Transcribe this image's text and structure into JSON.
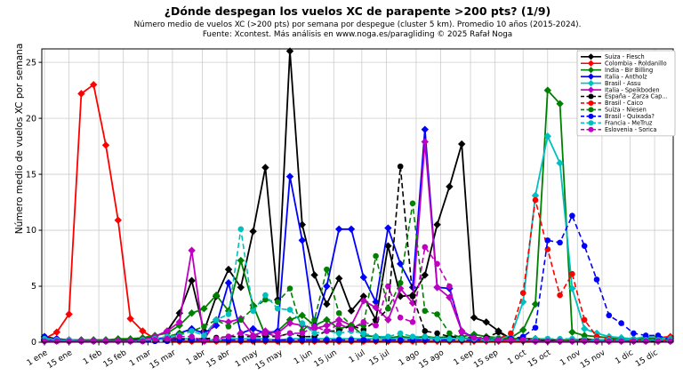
{
  "title": "¿Dónde despegan los vuelos XC de parapente >200 pts? (1/9)",
  "subtitle1": "Número medio de vuelos XC (>200 pts) por semana por despegue (cluster 5 km). Promedio 10 años (2015-2024).",
  "subtitle2": "Fuente: Xcontest. Más análisis en www.noga.es/paragliding © 2025 Rafał Noga",
  "chart_data": {
    "type": "line",
    "title": "¿Dónde despegan los vuelos XC de parapente >200 pts? (1/9)",
    "xlabel": "",
    "ylabel": "Número medio de vuelos XC por semana",
    "x_unit": "week_of_year",
    "x_range": [
      1,
      52
    ],
    "ylim": [
      0,
      26.2
    ],
    "yticks": [
      0,
      5,
      10,
      15,
      20,
      25
    ],
    "grid": true,
    "legend_position": "upper right",
    "xticks": [
      {
        "label": "1 ene",
        "day": 1
      },
      {
        "label": "15 ene",
        "day": 15
      },
      {
        "label": "1 feb",
        "day": 32
      },
      {
        "label": "15 feb",
        "day": 46
      },
      {
        "label": "1 mar",
        "day": 60
      },
      {
        "label": "15 mar",
        "day": 74
      },
      {
        "label": "1 abr",
        "day": 91
      },
      {
        "label": "15 abr",
        "day": 105
      },
      {
        "label": "1 may",
        "day": 121
      },
      {
        "label": "15 may",
        "day": 135
      },
      {
        "label": "1 jun",
        "day": 152
      },
      {
        "label": "15 jun",
        "day": 166
      },
      {
        "label": "1 jul",
        "day": 182
      },
      {
        "label": "15 jul",
        "day": 196
      },
      {
        "label": "1 ago",
        "day": 213
      },
      {
        "label": "15 ago",
        "day": 227
      },
      {
        "label": "1 sep",
        "day": 244
      },
      {
        "label": "15 sep",
        "day": 258
      },
      {
        "label": "1 oct",
        "day": 274
      },
      {
        "label": "15 oct",
        "day": 288
      },
      {
        "label": "1 nov",
        "day": 305
      },
      {
        "label": "15 nov",
        "day": 319
      },
      {
        "label": "1 dic",
        "day": 335
      },
      {
        "label": "15 dic",
        "day": 349
      }
    ],
    "series": [
      {
        "id": "suiza-fiesch",
        "name": "Suiza - Fiesch",
        "color": "#000000",
        "dash": false,
        "marker": "diamond",
        "values": [
          0.5,
          0.3,
          0.2,
          0.2,
          0.2,
          0.2,
          0.2,
          0.2,
          0.3,
          0.5,
          1.0,
          2.6,
          5.5,
          1.0,
          4.1,
          6.5,
          4.9,
          9.9,
          15.6,
          3.8,
          26.0,
          10.5,
          6.0,
          3.4,
          5.7,
          2.8,
          4.1,
          2.0,
          8.6,
          4.1,
          4.2,
          6.0,
          10.5,
          13.9,
          17.7,
          2.2,
          1.8,
          1.0,
          0.3,
          0.3,
          0.3,
          0.2,
          0.2,
          0.2,
          0.3,
          0.2,
          0.2,
          0.2,
          0.2,
          0.3,
          0.3,
          0.4
        ]
      },
      {
        "id": "colombia-roldanillo",
        "name": "Colombia - Roldanillo",
        "color": "#ff0000",
        "dash": false,
        "marker": "diamond",
        "values": [
          0.3,
          0.9,
          2.5,
          22.2,
          23.0,
          17.6,
          10.9,
          2.1,
          1.0,
          0.3,
          0.2,
          0.1,
          0.1,
          0.1,
          0.1,
          0.1,
          0.1,
          0.1,
          0.1,
          0.1,
          0.1,
          0.1,
          0.1,
          0.1,
          0.1,
          0.1,
          0.1,
          0.1,
          0.1,
          0.1,
          0.1,
          0.1,
          0.1,
          0.1,
          0.1,
          0.1,
          0.1,
          0.1,
          0.1,
          0.1,
          0.1,
          0.1,
          0.1,
          0.2,
          0.2,
          0.2,
          0.2,
          0.3,
          0.3,
          0.4,
          0.4,
          0.5
        ]
      },
      {
        "id": "india-bir-billing",
        "name": "India - Bir Billing",
        "color": "#008000",
        "dash": false,
        "marker": "diamond",
        "values": [
          0.2,
          0.2,
          0.2,
          0.2,
          0.2,
          0.2,
          0.3,
          0.3,
          0.4,
          0.6,
          0.8,
          1.5,
          2.6,
          3.0,
          4.2,
          2.8,
          7.3,
          3.3,
          0.6,
          1.0,
          2.0,
          2.4,
          1.5,
          2.0,
          1.2,
          1.5,
          0.6,
          0.5,
          0.4,
          0.5,
          0.4,
          0.5,
          0.4,
          0.5,
          0.5,
          0.7,
          0.5,
          0.4,
          0.4,
          1.1,
          3.4,
          22.5,
          21.3,
          0.9,
          0.6,
          0.5,
          0.4,
          0.3,
          0.3,
          0.3,
          0.5,
          0.3
        ]
      },
      {
        "id": "italia-antholz",
        "name": "Italia - Antholz",
        "color": "#0000ff",
        "dash": false,
        "marker": "diamond",
        "values": [
          0.2,
          0.2,
          0.1,
          0.1,
          0.1,
          0.1,
          0.1,
          0.1,
          0.2,
          0.3,
          0.4,
          0.8,
          1.2,
          0.8,
          1.5,
          5.3,
          0.8,
          1.2,
          0.8,
          1.0,
          14.8,
          9.1,
          1.3,
          5.0,
          10.1,
          10.1,
          5.8,
          3.6,
          10.2,
          7.0,
          4.9,
          19.0,
          4.9,
          4.8,
          1.0,
          0.4,
          0.3,
          0.2,
          0.2,
          0.2,
          0.1,
          0.1,
          0.1,
          0.1,
          0.1,
          0.1,
          0.1,
          0.1,
          0.1,
          0.1,
          0.1,
          0.1
        ]
      },
      {
        "id": "brasil-assu",
        "name": "Brasil - Assu",
        "color": "#00bfbf",
        "dash": false,
        "marker": "diamond",
        "values": [
          0.4,
          0.2,
          0.2,
          0.1,
          0.1,
          0.1,
          0.1,
          0.1,
          0.1,
          0.2,
          0.3,
          0.3,
          0.3,
          0.2,
          0.2,
          0.3,
          0.3,
          0.3,
          0.3,
          0.2,
          0.3,
          0.3,
          0.3,
          0.3,
          0.3,
          0.3,
          0.3,
          0.3,
          0.3,
          0.3,
          0.3,
          0.3,
          0.3,
          0.3,
          0.3,
          0.3,
          0.3,
          0.4,
          0.5,
          3.6,
          13.1,
          18.4,
          16.0,
          4.8,
          1.2,
          0.8,
          0.5,
          0.4,
          0.3,
          0.5,
          0.4,
          0.3
        ]
      },
      {
        "id": "italia-speikboden",
        "name": "Italia - Speikboden",
        "color": "#bf00bf",
        "dash": false,
        "marker": "diamond",
        "values": [
          0.1,
          0.1,
          0.1,
          0.1,
          0.1,
          0.1,
          0.1,
          0.1,
          0.2,
          0.5,
          1.0,
          1.8,
          8.2,
          0.2,
          2.0,
          1.8,
          2.1,
          0.6,
          1.0,
          0.8,
          1.7,
          1.5,
          1.2,
          1.5,
          2.0,
          1.5,
          3.7,
          3.1,
          2.0,
          4.8,
          3.5,
          17.9,
          4.9,
          4.0,
          1.0,
          0.3,
          0.2,
          0.2,
          0.2,
          0.2,
          0.1,
          0.1,
          0.1,
          0.1,
          0.1,
          0.1,
          0.1,
          0.1,
          0.1,
          0.1,
          0.1,
          0.1
        ]
      },
      {
        "id": "espana-zarza",
        "name": "España - Zarza Cap...",
        "color": "#000000",
        "dash": true,
        "marker": "circle",
        "values": [
          0.2,
          0.1,
          0.1,
          0.1,
          0.1,
          0.1,
          0.1,
          0.1,
          0.2,
          0.2,
          0.3,
          0.3,
          0.3,
          0.3,
          0.4,
          0.5,
          0.5,
          0.5,
          0.5,
          0.5,
          0.8,
          0.5,
          0.5,
          1.0,
          1.0,
          1.5,
          1.1,
          1.9,
          3.0,
          15.7,
          4.1,
          1.0,
          0.8,
          0.5,
          0.4,
          0.4,
          0.4,
          0.9,
          0.3,
          0.3,
          0.2,
          0.2,
          0.2,
          0.2,
          0.2,
          0.2,
          0.2,
          0.2,
          0.1,
          0.1,
          0.1,
          0.1
        ]
      },
      {
        "id": "brasil-caico",
        "name": "Brasil - Caico",
        "color": "#ff0000",
        "dash": true,
        "marker": "circle",
        "values": [
          0.2,
          0.1,
          0.1,
          0.1,
          0.1,
          0.1,
          0.1,
          0.1,
          0.1,
          0.1,
          0.1,
          0.1,
          0.1,
          0.1,
          0.1,
          0.1,
          0.1,
          0.1,
          0.1,
          0.1,
          0.1,
          0.1,
          0.1,
          0.1,
          0.1,
          0.1,
          0.1,
          0.1,
          0.1,
          0.1,
          0.1,
          0.2,
          0.2,
          0.2,
          0.2,
          0.2,
          0.2,
          0.3,
          0.8,
          4.4,
          12.7,
          8.3,
          4.2,
          6.1,
          2.0,
          0.5,
          0.3,
          0.2,
          0.2,
          0.2,
          0.2,
          0.2
        ]
      },
      {
        "id": "suiza-niesen",
        "name": "Suiza - Niesen",
        "color": "#008000",
        "dash": true,
        "marker": "circle",
        "values": [
          0.2,
          0.1,
          0.1,
          0.1,
          0.1,
          0.1,
          0.1,
          0.1,
          0.2,
          0.3,
          0.5,
          0.8,
          1.0,
          1.4,
          2.0,
          1.4,
          2.0,
          3.0,
          3.8,
          3.6,
          4.8,
          1.0,
          2.0,
          6.5,
          2.6,
          1.5,
          1.5,
          7.7,
          3.0,
          5.3,
          12.4,
          2.8,
          2.5,
          0.8,
          0.4,
          0.3,
          0.3,
          0.3,
          0.3,
          0.3,
          0.3,
          0.3,
          0.2,
          0.2,
          0.2,
          0.2,
          0.2,
          0.2,
          0.2,
          0.2,
          0.3,
          0.2
        ]
      },
      {
        "id": "brasil-quixada",
        "name": "Brasil - Quixada?",
        "color": "#0000ff",
        "dash": true,
        "marker": "circle",
        "values": [
          0.5,
          0.3,
          0.2,
          0.1,
          0.1,
          0.1,
          0.1,
          0.1,
          0.1,
          0.1,
          0.1,
          0.2,
          0.2,
          0.2,
          0.2,
          0.2,
          0.2,
          0.2,
          0.2,
          0.2,
          0.2,
          0.2,
          0.2,
          0.2,
          0.2,
          0.2,
          0.2,
          0.2,
          0.2,
          0.2,
          0.2,
          0.2,
          0.2,
          0.2,
          0.2,
          0.2,
          0.2,
          0.2,
          0.3,
          0.5,
          1.3,
          9.1,
          8.9,
          11.3,
          8.6,
          5.6,
          2.4,
          1.7,
          0.8,
          0.6,
          0.6,
          0.2
        ]
      },
      {
        "id": "francia-metruz",
        "name": "Francia - MeTruz",
        "color": "#00bfbf",
        "dash": true,
        "marker": "circle",
        "values": [
          0.3,
          0.2,
          0.2,
          0.1,
          0.1,
          0.1,
          0.1,
          0.1,
          0.2,
          0.3,
          0.5,
          0.6,
          1.0,
          0.6,
          2.0,
          2.5,
          10.1,
          2.8,
          4.2,
          3.0,
          2.9,
          1.7,
          0.8,
          1.0,
          0.8,
          1.0,
          0.8,
          0.5,
          0.5,
          0.8,
          0.5,
          0.5,
          0.3,
          0.3,
          0.3,
          0.3,
          0.2,
          0.2,
          0.2,
          0.2,
          0.3,
          0.3,
          0.3,
          0.3,
          0.2,
          0.2,
          0.2,
          0.2,
          0.2,
          0.2,
          0.2,
          0.2
        ]
      },
      {
        "id": "eslovenia-sorica",
        "name": "Eslovenia - Sorica",
        "color": "#bf00bf",
        "dash": true,
        "marker": "circle",
        "values": [
          0.1,
          0.1,
          0.1,
          0.1,
          0.1,
          0.1,
          0.1,
          0.1,
          0.1,
          0.2,
          0.3,
          0.5,
          0.5,
          0.1,
          0.3,
          0.5,
          0.8,
          0.5,
          0.8,
          0.5,
          0.8,
          0.8,
          1.4,
          1.0,
          1.6,
          1.2,
          1.8,
          1.5,
          5.0,
          2.2,
          1.8,
          8.5,
          7.0,
          5.0,
          0.9,
          0.4,
          0.3,
          0.2,
          0.2,
          0.2,
          0.1,
          0.1,
          0.1,
          0.1,
          0.1,
          0.1,
          0.1,
          0.1,
          0.1,
          0.1,
          0.1,
          0.1
        ]
      }
    ]
  }
}
